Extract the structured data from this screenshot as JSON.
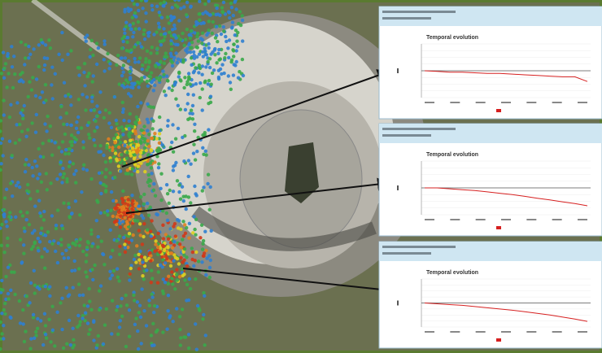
{
  "panels": [
    {
      "chart_data": {
        "type": "line",
        "title": "Temporal evolution",
        "ylim": [
          -40,
          40
        ],
        "series": [
          {
            "color": "#d62020",
            "values": [
              0,
              -1,
              -2,
              -2,
              -3,
              -4,
              -4,
              -5,
              -6,
              -7,
              -8,
              -9,
              -9,
              -16
            ]
          }
        ]
      }
    },
    {
      "chart_data": {
        "type": "line",
        "title": "Temporal evolution",
        "ylim": [
          -60,
          60
        ],
        "series": [
          {
            "color": "#d62020",
            "values": [
              0,
              0,
              -2,
              -4,
              -6,
              -9,
              -12,
              -15,
              -19,
              -23,
              -27,
              -31,
              -35,
              -40
            ]
          }
        ]
      }
    },
    {
      "chart_data": {
        "type": "line",
        "title": "Temporal evolution",
        "ylim": [
          -60,
          60
        ],
        "series": [
          {
            "color": "#d62020",
            "values": [
              0,
              -2,
              -4,
              -6,
              -9,
              -12,
              -15,
              -18,
              -22,
              -26,
              -30,
              -35,
              -40,
              -46
            ]
          }
        ]
      }
    }
  ]
}
